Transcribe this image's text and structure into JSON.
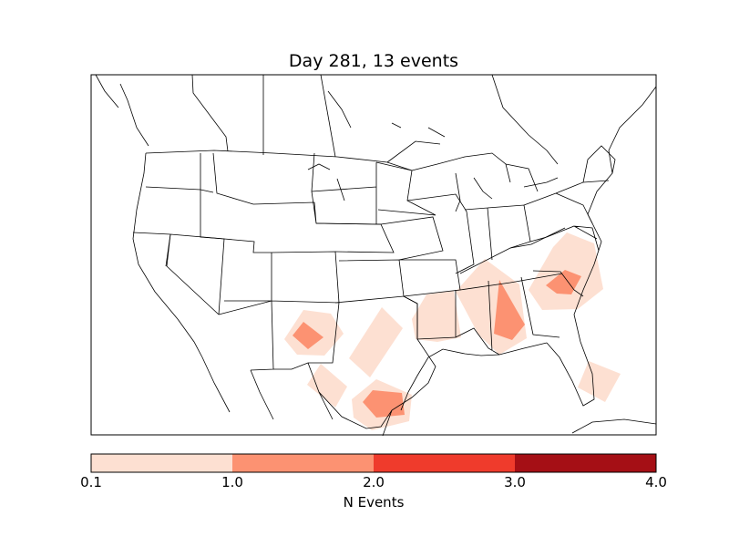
{
  "title": "Day 281, 13 events",
  "colorbar": {
    "label": "N Events",
    "ticks": [
      "0.1",
      "1.0",
      "2.0",
      "3.0",
      "4.0"
    ],
    "bins": [
      {
        "from": 0.1,
        "to": 1.0,
        "color": "#fde0d2"
      },
      {
        "from": 1.0,
        "to": 2.0,
        "color": "#fc9272"
      },
      {
        "from": 2.0,
        "to": 3.0,
        "color": "#ef3b2c"
      },
      {
        "from": 3.0,
        "to": 4.0,
        "color": "#a50f15"
      }
    ]
  },
  "map": {
    "region": "contiguous United States",
    "event_regions": [
      {
        "area": "southeast New Mexico",
        "level": "1.0-2.0"
      },
      {
        "area": "west Texas",
        "level": "0.1-1.0"
      },
      {
        "area": "south Texas",
        "level": "1.0-2.0"
      },
      {
        "area": "Louisiana / Mississippi",
        "level": "0.1-1.0"
      },
      {
        "area": "Alabama / Georgia",
        "level": "1.0-2.0"
      },
      {
        "area": "South Carolina / North Carolina",
        "level": "1.0-2.0"
      },
      {
        "area": "Florida",
        "level": "0.1-1.0"
      }
    ]
  },
  "colors": {
    "background": "#ffffff",
    "outline": "#000000"
  }
}
